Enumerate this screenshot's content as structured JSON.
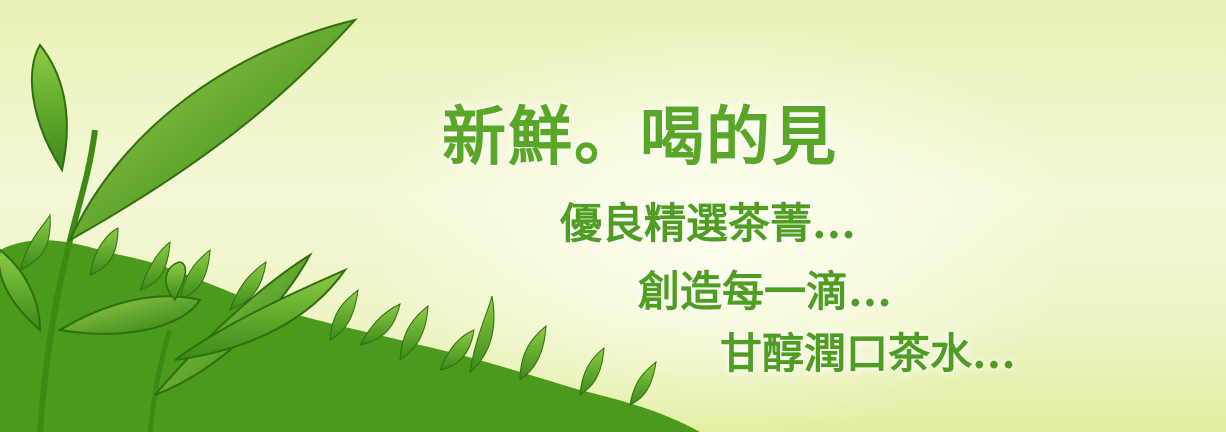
{
  "banner": {
    "headline": "新鮮。喝的見",
    "lines": [
      "優良精選茶菁...",
      "創造每一滴...",
      "甘醇潤口茶水..."
    ]
  },
  "colors": {
    "text_green": "#4f9e22",
    "leaf_dark": "#2f7d12",
    "leaf_light": "#7bc43a",
    "background": "#f4f7d6"
  },
  "icons": [
    "tea-leaf-icon"
  ]
}
